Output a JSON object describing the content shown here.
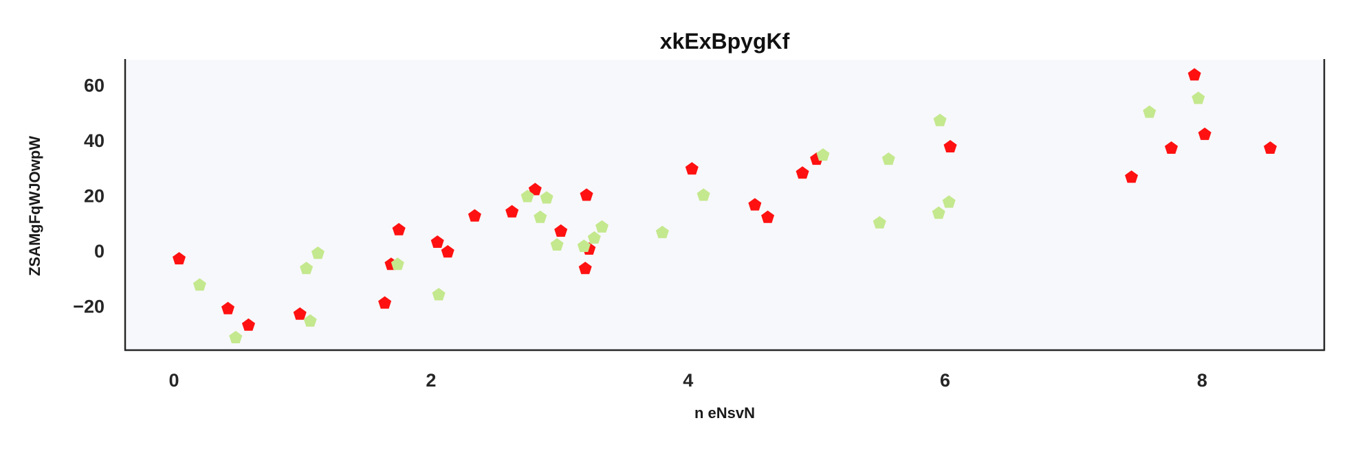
{
  "chart_data": {
    "type": "scatter",
    "title": "xkExBpygKf",
    "xlabel": "n eNsvN",
    "ylabel": "ZSAMgFqWJOwpW",
    "xlim": [
      -0.38,
      8.95
    ],
    "ylim": [
      -36,
      69
    ],
    "xticks": [
      0,
      2,
      4,
      6,
      8
    ],
    "xtick_labels": [
      "0",
      "2",
      "4",
      "6",
      "8"
    ],
    "yticks": [
      -20,
      0,
      20,
      40,
      60
    ],
    "ytick_labels": [
      "−20",
      "0",
      "20",
      "40",
      "60"
    ],
    "grid": false,
    "legend": "none",
    "plot_background": "#f7f8fb",
    "marker": "pentagon",
    "series": [
      {
        "color": "#ff1111",
        "x": [
          0.04,
          0.42,
          0.58,
          0.98,
          1.64,
          1.69,
          1.75,
          2.05,
          2.13,
          2.34,
          2.63,
          2.81,
          3.01,
          3.2,
          3.21,
          3.23,
          4.03,
          4.52,
          4.62,
          4.89,
          5.0,
          6.04,
          7.45,
          7.76,
          7.94,
          8.02,
          8.53
        ],
        "y": [
          -3,
          -21,
          -27,
          -23,
          -19,
          -5,
          7.5,
          3,
          -0.5,
          12.5,
          14,
          22,
          7,
          -6.5,
          20,
          0.5,
          29.5,
          16.5,
          12,
          28,
          33,
          37.5,
          26.5,
          37,
          63.5,
          42,
          37
        ]
      },
      {
        "color": "#c4e88e",
        "x": [
          0.2,
          0.48,
          1.03,
          1.06,
          1.12,
          1.74,
          2.06,
          2.75,
          2.85,
          2.9,
          2.98,
          3.19,
          3.27,
          3.33,
          3.8,
          4.12,
          5.05,
          5.49,
          5.56,
          5.95,
          5.96,
          6.03,
          7.59,
          7.97
        ],
        "y": [
          -12.5,
          -31.5,
          -6.5,
          -25.5,
          -1,
          -5,
          -16,
          19.5,
          12,
          19,
          2,
          1.5,
          4.5,
          8.5,
          6.5,
          20,
          34.5,
          10,
          33,
          13.5,
          47,
          17.5,
          50,
          55
        ]
      }
    ]
  }
}
